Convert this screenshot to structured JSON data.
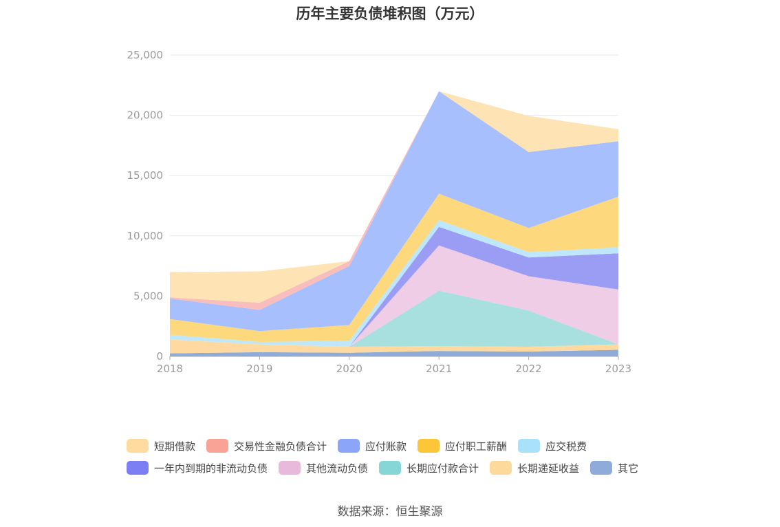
{
  "chart_data": {
    "type": "area",
    "stacked": true,
    "title": "历年主要负债堆积图（万元）",
    "source": "数据来源：恒生聚源",
    "x": [
      "2018",
      "2019",
      "2020",
      "2021",
      "2022",
      "2023"
    ],
    "ylim": [
      0,
      25000
    ],
    "yticks": [
      "0",
      "5,000",
      "10,000",
      "15,000",
      "20,000",
      "25,000"
    ],
    "grid": true,
    "legend_position": "bottom",
    "series": [
      {
        "name": "其它",
        "color": "#8eabd9",
        "values": [
          250,
          350,
          300,
          450,
          400,
          550
        ]
      },
      {
        "name": "长期递延收益",
        "color": "#ffd9a0",
        "values": [
          1150,
          650,
          500,
          400,
          400,
          450
        ]
      },
      {
        "name": "长期应付款合计",
        "color": "#a8e0e0",
        "values": [
          0,
          0,
          0,
          4600,
          3000,
          0
        ]
      },
      {
        "name": "其他流动负债",
        "color": "#efcde6",
        "values": [
          0,
          0,
          0,
          3750,
          2850,
          4550
        ]
      },
      {
        "name": "一年内到期的非流动负债",
        "color": "#9b9cf4",
        "values": [
          0,
          0,
          0,
          1550,
          1550,
          3000
        ]
      },
      {
        "name": "应交税费",
        "color": "#bfe7fb",
        "values": [
          400,
          200,
          500,
          550,
          450,
          500
        ]
      },
      {
        "name": "应付职工薪酬",
        "color": "#fed87c",
        "values": [
          1300,
          900,
          1300,
          2200,
          2000,
          4200
        ]
      },
      {
        "name": "应付账款",
        "color": "#a7bffd",
        "values": [
          1700,
          1750,
          4900,
          8500,
          6300,
          4600
        ]
      },
      {
        "name": "交易性金融负债合计",
        "color": "#f9bebc",
        "values": [
          100,
          600,
          400,
          0,
          0,
          0
        ]
      },
      {
        "name": "短期借款",
        "color": "#fee4b5",
        "values": [
          2100,
          2600,
          0,
          0,
          3000,
          1000
        ]
      }
    ],
    "legend": [
      {
        "name": "短期借款",
        "color": "#fedb9e"
      },
      {
        "name": "交易性金融负债合计",
        "color": "#f9a396"
      },
      {
        "name": "应付账款",
        "color": "#8ba5f8"
      },
      {
        "name": "应付职工薪酬",
        "color": "#fdc538"
      },
      {
        "name": "应交税费",
        "color": "#a9e1fa"
      },
      {
        "name": "一年内到期的非流动负债",
        "color": "#7b7ff2"
      },
      {
        "name": "其他流动负债",
        "color": "#e8b9da"
      },
      {
        "name": "长期应付款合计",
        "color": "#86d6d8"
      },
      {
        "name": "长期递延收益",
        "color": "#fed99c"
      },
      {
        "name": "其它",
        "color": "#8eabd9"
      }
    ]
  }
}
